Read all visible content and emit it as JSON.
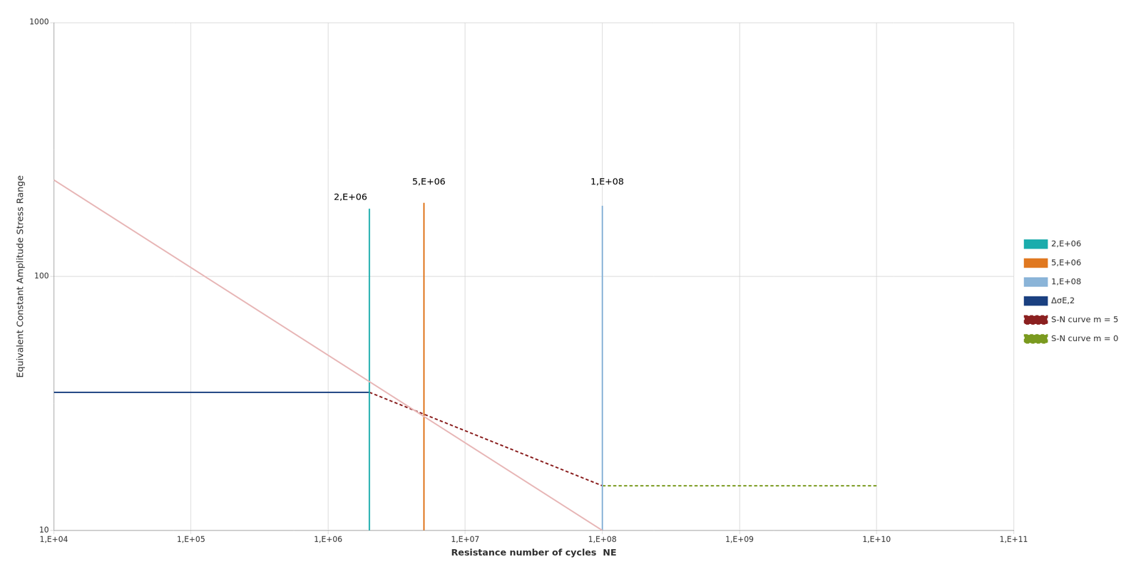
{
  "chart_data": {
    "type": "line",
    "xlabel": "Resistance number of cycles  NE",
    "ylabel": "Equivalent Constant Amplitude Stress Range",
    "log": true,
    "grid": true,
    "legend": "right",
    "xlim": [
      10000,
      100000000000
    ],
    "ylim": [
      10,
      1000
    ],
    "xticks": [
      {
        "value": 10000,
        "label": "1,E+04"
      },
      {
        "value": 100000,
        "label": "1,E+05"
      },
      {
        "value": 1000000,
        "label": "1,E+06"
      },
      {
        "value": 10000000,
        "label": "1,E+07"
      },
      {
        "value": 100000000,
        "label": "1,E+08"
      },
      {
        "value": 1000000000,
        "label": "1,E+09"
      },
      {
        "value": 10000000000,
        "label": "1,E+10"
      },
      {
        "value": 100000000000,
        "label": "1,E+11"
      }
    ],
    "yticks": [
      10,
      100,
      1000
    ],
    "series": [
      {
        "color": "#e8b8b8",
        "x": [
          10000,
          100000000
        ],
        "values": [
          240,
          10
        ],
        "line_style": "solid"
      },
      {
        "name": "2,E+06",
        "color": "#1aacac",
        "x": [
          2000000,
          2000000
        ],
        "values": [
          10,
          185
        ],
        "line_style": "solid"
      },
      {
        "name": "5,E+06",
        "color": "#e07820",
        "x": [
          5000000,
          5000000
        ],
        "values": [
          10,
          195
        ],
        "line_style": "solid"
      },
      {
        "name": "1,E+08",
        "color": "#8ab4d8",
        "x": [
          100000000,
          100000000
        ],
        "values": [
          10,
          190
        ],
        "line_style": "solid"
      },
      {
        "name": "ΔσE,2",
        "color": "#1a4080",
        "x": [
          10000,
          2000000
        ],
        "values": [
          35,
          35
        ],
        "line_style": "solid"
      },
      {
        "name": "S-N curve m = 5",
        "color": "#8b2020",
        "x": [
          2000000,
          100000000
        ],
        "values": [
          35,
          15
        ],
        "line_style": "dashed"
      },
      {
        "name": "S-N curve m = 0",
        "color": "#7a9a1f",
        "x": [
          100000000,
          10000000000
        ],
        "values": [
          15,
          15
        ],
        "line_style": "dashed"
      }
    ],
    "annotations": [
      {
        "text": "2,E+06",
        "x": 1100000,
        "y": 200
      },
      {
        "text": "5,E+06",
        "x": 4100000,
        "y": 230
      },
      {
        "text": "1,E+08",
        "x": 82000000,
        "y": 230
      }
    ]
  }
}
